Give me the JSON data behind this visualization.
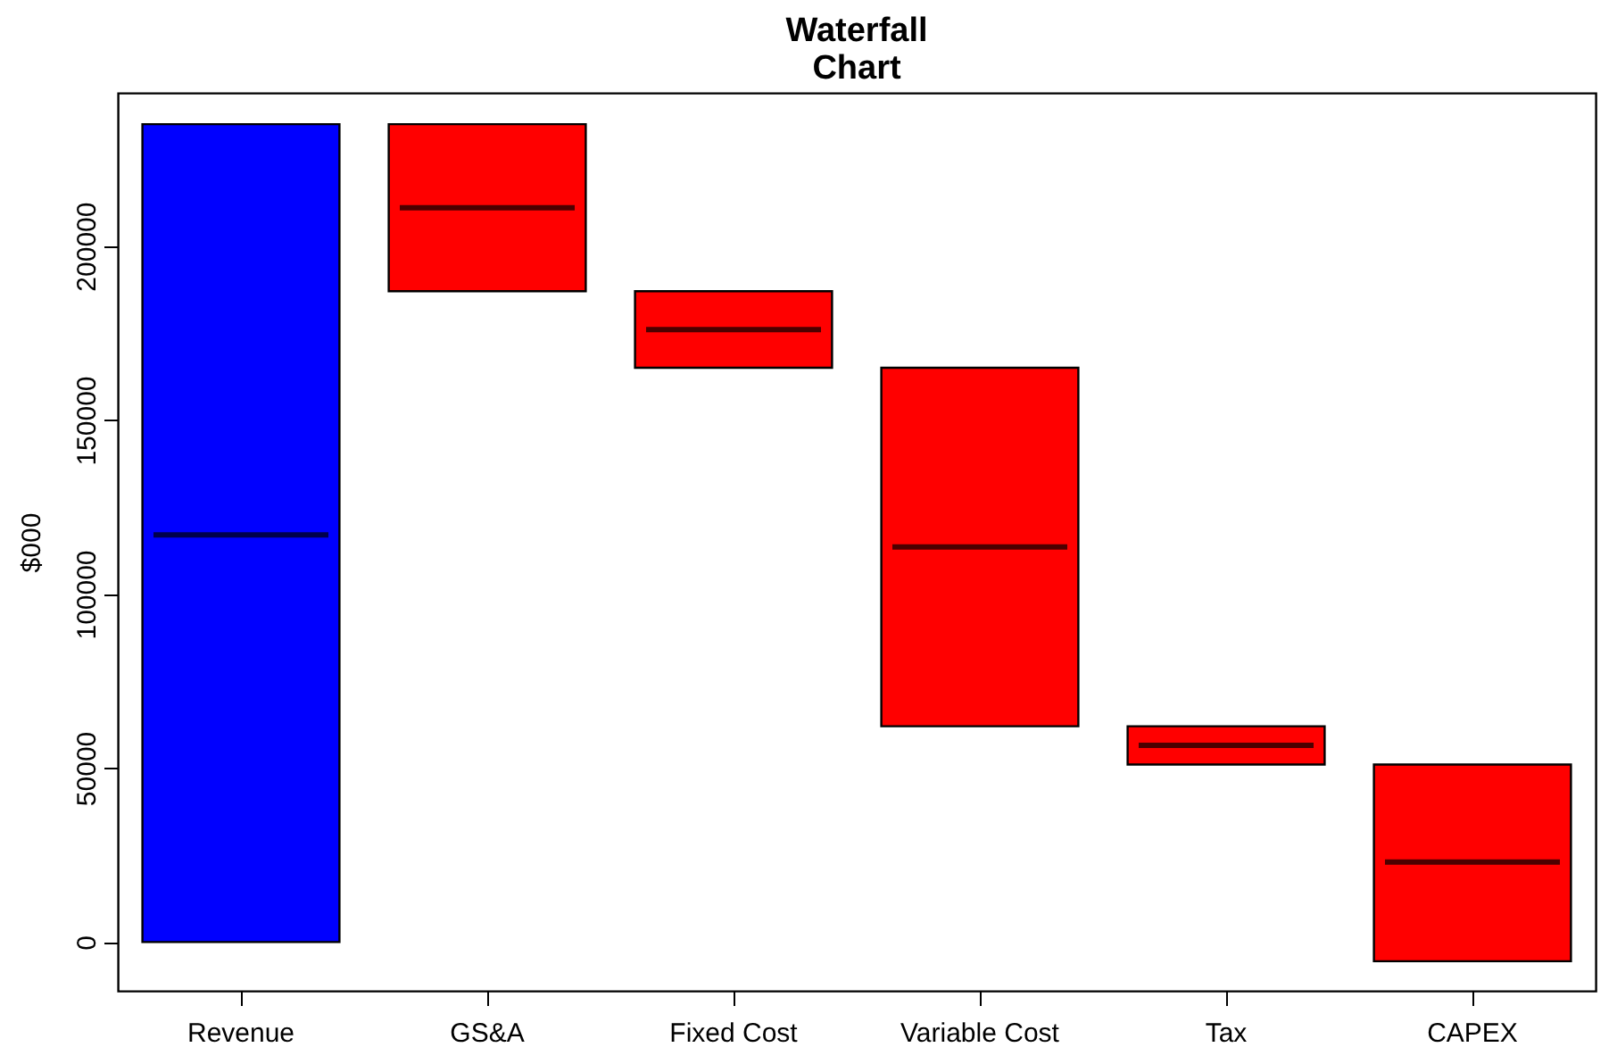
{
  "chart_data": {
    "type": "box",
    "title": "Waterfall\nChart",
    "ylabel": "$000",
    "categories": [
      "Revenue",
      "GS&A",
      "Fixed Cost",
      "Variable Cost",
      "Tax",
      "CAPEX"
    ],
    "colors": [
      "#0000ff",
      "#ff0000",
      "#ff0000",
      "#ff0000",
      "#ff0000",
      "#ff0000"
    ],
    "boxes": [
      {
        "low": 0,
        "q1": 0,
        "median": 117000,
        "q3": 235000,
        "high": 235000
      },
      {
        "low": 187000,
        "q1": 187000,
        "median": 211000,
        "q3": 235000,
        "high": 235000
      },
      {
        "low": 165000,
        "q1": 165000,
        "median": 176000,
        "q3": 187000,
        "high": 187000
      },
      {
        "low": 62000,
        "q1": 62000,
        "median": 113500,
        "q3": 165000,
        "high": 165000
      },
      {
        "low": 51000,
        "q1": 51000,
        "median": 56500,
        "q3": 62000,
        "high": 62000
      },
      {
        "low": -5500,
        "q1": -5500,
        "median": 23000,
        "q3": 51000,
        "high": 51000
      }
    ],
    "ylim": [
      -14000,
      244000
    ],
    "yticks": [
      0,
      50000,
      100000,
      150000,
      200000
    ],
    "grid": false
  }
}
